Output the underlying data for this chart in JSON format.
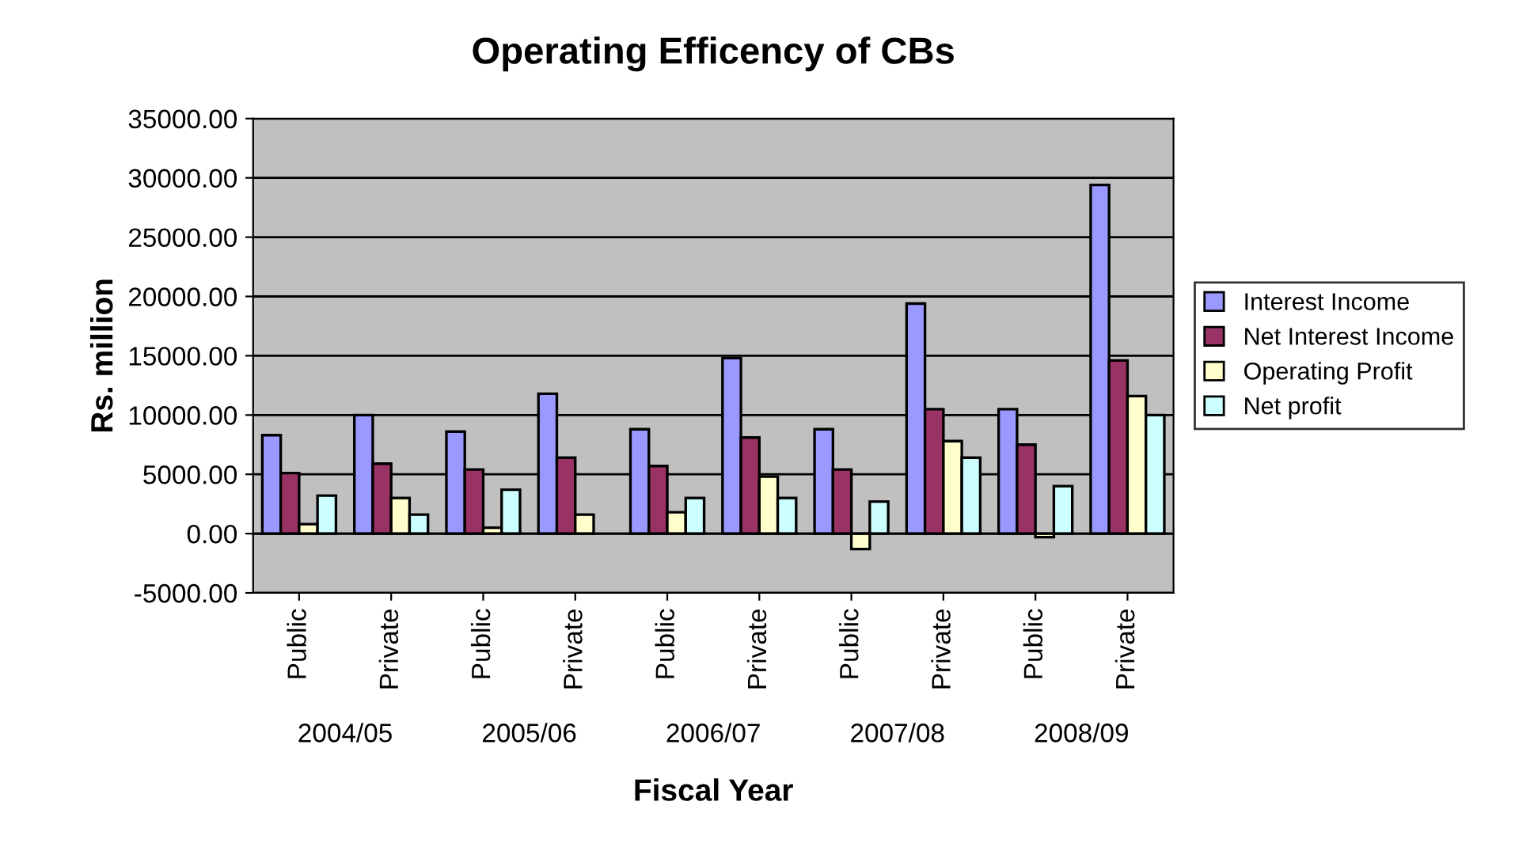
{
  "chart_data": {
    "type": "bar",
    "title": "Operating Efficency of CBs",
    "xlabel": "Fiscal Year",
    "ylabel": "Rs. million",
    "categories": [
      "Public",
      "Private",
      "Public",
      "Private",
      "Public",
      "Private",
      "Public",
      "Private",
      "Public",
      "Private"
    ],
    "annotations": [
      "2004/05",
      "2005/06",
      "2006/07",
      "2007/08",
      "2008/09"
    ],
    "series": [
      {
        "name": "Interest Income",
        "color": "#9999ff",
        "values": [
          8300,
          10000,
          8600,
          11800,
          8800,
          14800,
          8800,
          19400,
          10500,
          29400
        ]
      },
      {
        "name": "Net Interest Income",
        "color": "#993366",
        "values": [
          5100,
          5900,
          5400,
          6400,
          5700,
          8100,
          5400,
          10500,
          7500,
          14600
        ]
      },
      {
        "name": "Operating Profit",
        "color": "#ffffcc",
        "values": [
          800,
          3000,
          500,
          1600,
          1800,
          4800,
          -1300,
          7800,
          -300,
          11600
        ]
      },
      {
        "name": "Net profit",
        "color": "#ccffff",
        "values": [
          3200,
          1600,
          3700,
          null,
          3000,
          3000,
          2700,
          6400,
          4000,
          10000
        ]
      }
    ],
    "ylim": [
      -5000,
      35000
    ],
    "yticks": [
      {
        "value": -5000,
        "label": "-5000.00"
      },
      {
        "value": 0,
        "label": "0.00"
      },
      {
        "value": 5000,
        "label": "5000.00"
      },
      {
        "value": 10000,
        "label": "10000.00"
      },
      {
        "value": 15000,
        "label": "15000.00"
      },
      {
        "value": 20000,
        "label": "20000.00"
      },
      {
        "value": 25000,
        "label": "25000.00"
      },
      {
        "value": 30000,
        "label": "30000.00"
      },
      {
        "value": 35000,
        "label": "35000.00"
      }
    ],
    "grid": "y",
    "legend": "right"
  }
}
